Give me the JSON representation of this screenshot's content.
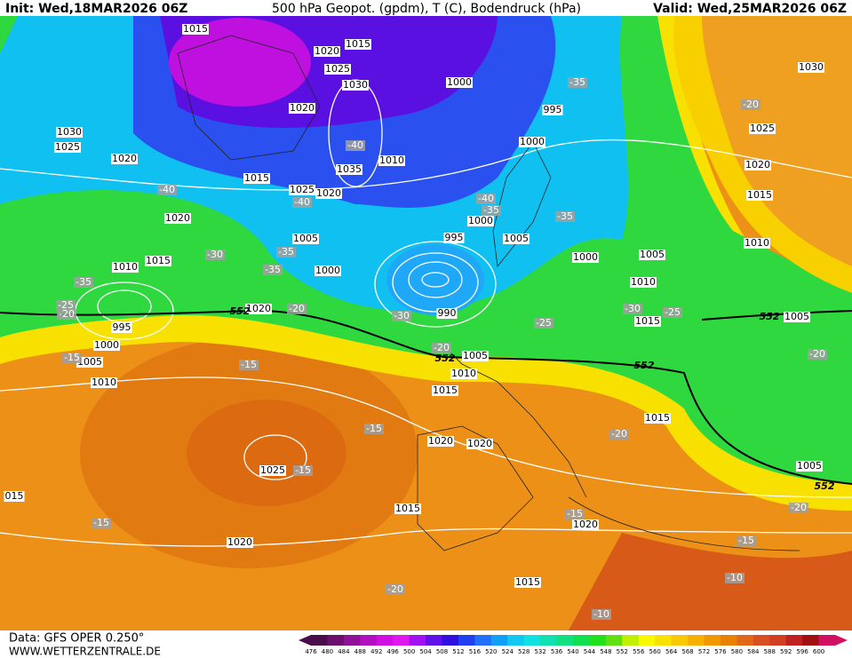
{
  "header": {
    "init": "Init: Wed,18MAR2026 06Z",
    "title": "500 hPa Geopot. (gpdm), T (C), Bodendruck (hPa)",
    "valid": "Valid: Wed,25MAR2026 06Z"
  },
  "footer": {
    "data_source": "Data: GFS OPER 0.250°",
    "website": "WWW.WETTERZENTRALE.DE"
  },
  "colorbar": {
    "levels": [
      476,
      480,
      484,
      488,
      492,
      496,
      500,
      504,
      508,
      512,
      516,
      520,
      524,
      528,
      532,
      536,
      540,
      544,
      548,
      552,
      556,
      560,
      564,
      568,
      572,
      576,
      580,
      584,
      588,
      592,
      596,
      600
    ],
    "colors": [
      "#4b0c4b",
      "#6d0d6d",
      "#91109a",
      "#b010c0",
      "#d010e0",
      "#e018f0",
      "#a010f0",
      "#6010e8",
      "#3010e0",
      "#2040f0",
      "#2070f8",
      "#10a0f8",
      "#10c8f0",
      "#10e0e0",
      "#10e0b0",
      "#10e080",
      "#10e050",
      "#20e020",
      "#60e010",
      "#c0f000",
      "#f8f800",
      "#f8e000",
      "#f8c800",
      "#f8b000",
      "#f09800",
      "#e88000",
      "#e06818",
      "#d85020",
      "#d04020",
      "#c02020",
      "#a01010",
      "#d01060"
    ]
  },
  "isobar_labels": [
    "1015",
    "1020",
    "1015",
    "1025",
    "1030",
    "1000",
    "1030",
    "1020",
    "995",
    "1030",
    "1025",
    "1020",
    "1035",
    "1010",
    "1000",
    "1025",
    "1020",
    "1015",
    "1025",
    "1020",
    "1015",
    "1020",
    "1000",
    "1005",
    "995",
    "1005",
    "1010",
    "1010",
    "1015",
    "1000",
    "1000",
    "1005",
    "1010",
    "1020",
    "990",
    "995",
    "1000",
    "1005",
    "1005",
    "1005",
    "1015",
    "1010",
    "1010",
    "1015",
    "1015",
    "1020",
    "1020",
    "1025",
    "1005",
    "1015",
    "1020",
    "1020",
    "1015",
    "015"
  ],
  "temperature_labels": [
    "-35",
    "-20",
    "-40",
    "-40",
    "-40",
    "-40",
    "-35",
    "-35",
    "-30",
    "-35",
    "-35",
    "-35",
    "-25",
    "-20",
    "-20",
    "-30",
    "-30",
    "-25",
    "-25",
    "-20",
    "-15",
    "-15",
    "-20",
    "-15",
    "-20",
    "-15",
    "-20",
    "-15",
    "-15",
    "-15",
    "-10",
    "-20",
    "-10"
  ],
  "contour_552_labels": [
    "552",
    "552",
    "552",
    "552",
    "552"
  ]
}
